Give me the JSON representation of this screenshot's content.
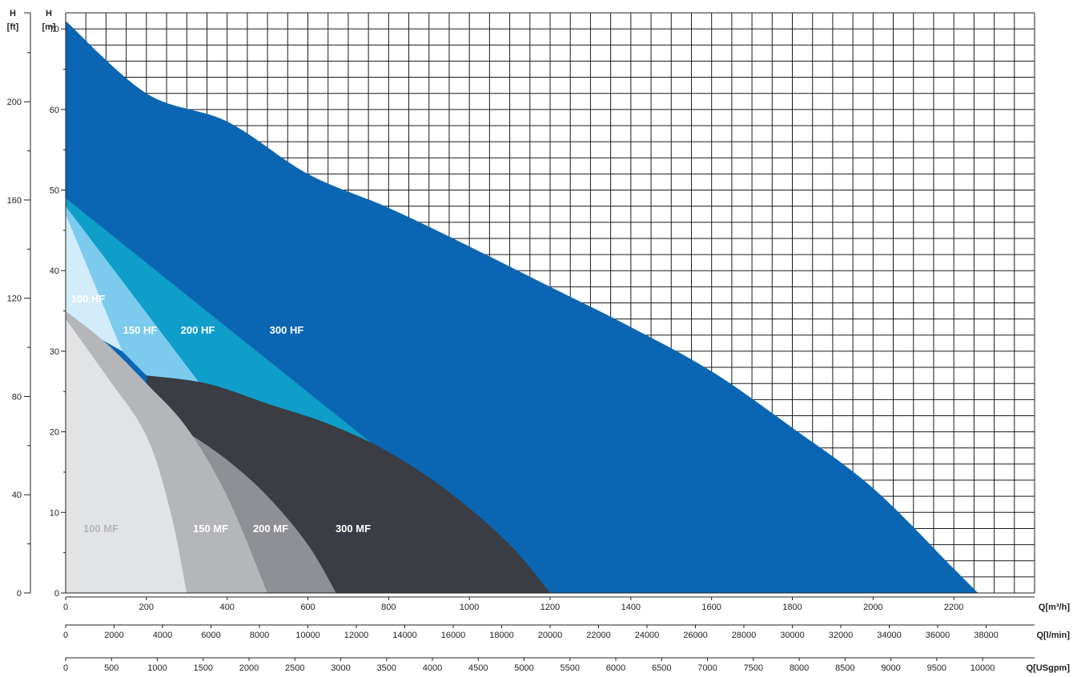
{
  "chart_data": {
    "type": "area",
    "title": "",
    "left_axes": {
      "ft": {
        "label_top": "H",
        "label_unit": "[ft]",
        "range": [
          0,
          240
        ],
        "ticks": [
          "0",
          "40",
          "80",
          "120",
          "160",
          "200"
        ]
      },
      "m": {
        "label_top": "H",
        "label_unit": "[m]",
        "range": [
          0,
          72
        ],
        "ticks": [
          "0",
          "10",
          "20",
          "30",
          "40",
          "50",
          "60",
          "70"
        ]
      }
    },
    "bottom_axes": [
      {
        "label": "Q[m³/h]",
        "max_at_right": 2400,
        "ticks": [
          "0",
          "200",
          "400",
          "600",
          "800",
          "1000",
          "1200",
          "1400",
          "1600",
          "1800",
          "2000",
          "2200"
        ]
      },
      {
        "label": "Q[l/min]",
        "max_at_right": 40000,
        "ticks": [
          "0",
          "2000",
          "4000",
          "6000",
          "8000",
          "10000",
          "12000",
          "14000",
          "16000",
          "18000",
          "20000",
          "22000",
          "24000",
          "26000",
          "28000",
          "30000",
          "32000",
          "34000",
          "36000",
          "38000"
        ]
      },
      {
        "label": "Q[USgpm]",
        "max_at_right": 10567,
        "ticks": [
          "0",
          "500",
          "1000",
          "1500",
          "2000",
          "2500",
          "3000",
          "3500",
          "4000",
          "4500",
          "5000",
          "5500",
          "6000",
          "6500",
          "7000",
          "7500",
          "8000",
          "8500",
          "9000",
          "9500",
          "10000"
        ]
      }
    ],
    "x_range_m3h": [
      0,
      2400
    ],
    "y_range_m": [
      0,
      72
    ],
    "grid": true,
    "series": [
      {
        "name": "300 HF",
        "color": "#0a66b2",
        "label_color": "#ffffff",
        "x": [
          0,
          200,
          400,
          600,
          800,
          1000,
          1200,
          1400,
          1600,
          1800,
          2000,
          2200,
          2260
        ],
        "y": [
          71,
          62,
          58.5,
          52,
          47.8,
          43,
          38,
          33,
          27.5,
          20.5,
          13,
          3,
          0
        ]
      },
      {
        "name": "200 HF",
        "color": "#0e9ec9",
        "label_color": "#ffffff",
        "x": [
          0,
          150,
          300,
          450,
          600,
          760
        ],
        "y": [
          49,
          42,
          36,
          30,
          24,
          18.5
        ]
      },
      {
        "name": "150 HF",
        "color": "#7ccbef",
        "label_color": "#ffffff",
        "x": [
          0,
          100,
          200,
          340
        ],
        "y": [
          48,
          42,
          36,
          25.5
        ]
      },
      {
        "name": "100 HF",
        "color": "#d2ecfb",
        "label_color": "#ffffff",
        "x": [
          0,
          80,
          140
        ],
        "y": [
          47,
          40,
          30
        ]
      },
      {
        "name": "300 MF",
        "color": "#3a3d44",
        "label_color": "#ffffff",
        "x": [
          200,
          350,
          500,
          650,
          800,
          950,
          1100,
          1200
        ],
        "y": [
          27,
          26,
          23.5,
          21,
          17.5,
          12.5,
          6,
          0
        ]
      },
      {
        "name": "200 MF",
        "color": "#8f9095",
        "label_color": "#ffffff",
        "x": [
          300,
          400,
          500,
          600,
          670
        ],
        "y": [
          20,
          16.5,
          12,
          6,
          0
        ]
      },
      {
        "name": "150 MF",
        "color": "#b5b6ba",
        "label_color": "#ffffff",
        "x": [
          0,
          100,
          200,
          300,
          400,
          500
        ],
        "y": [
          35,
          31,
          26,
          20.5,
          12,
          0
        ]
      },
      {
        "name": "100 MF",
        "color": "#e2e3e5",
        "label_color": "#b5b6ba",
        "x": [
          0,
          100,
          200,
          260,
          300
        ],
        "y": [
          34,
          27,
          19.5,
          10,
          0
        ]
      }
    ]
  }
}
